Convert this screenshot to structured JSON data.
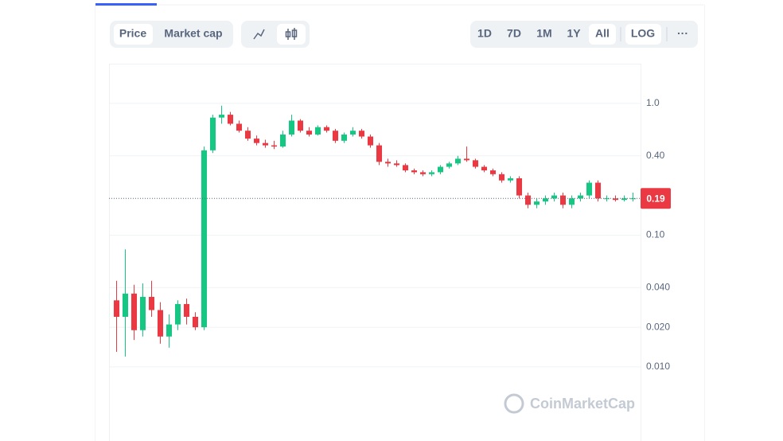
{
  "ui": {
    "tabs": [
      "Price",
      "Market cap"
    ],
    "ranges": [
      "1D",
      "7D",
      "1M",
      "1Y",
      "All"
    ],
    "log_button": "LOG",
    "more": "···",
    "watermark": "CoinMarketCap"
  },
  "chart_data": {
    "type": "candlestick",
    "log_scale": true,
    "grid": true,
    "up_color": "#16c784",
    "down_color": "#ea3943",
    "ylim": [
      0.00274,
      2.0
    ],
    "yticks": [
      {
        "value": 1,
        "label": "1.0"
      },
      {
        "value": 0.4,
        "label": "0.40"
      },
      {
        "value": 0.1,
        "label": "0.10"
      },
      {
        "value": 0.04,
        "label": "0.040"
      },
      {
        "value": 0.02,
        "label": "0.020"
      },
      {
        "value": 0.01,
        "label": "0.010"
      }
    ],
    "last_price": 0.19,
    "open": [
      0.032,
      0.024,
      0.036,
      0.019,
      0.034,
      0.027,
      0.017,
      0.021,
      0.03,
      0.024,
      0.02,
      0.44,
      0.78,
      0.82,
      0.7,
      0.62,
      0.54,
      0.5,
      0.48,
      0.47,
      0.58,
      0.74,
      0.62,
      0.58,
      0.66,
      0.62,
      0.52,
      0.58,
      0.62,
      0.56,
      0.48,
      0.36,
      0.35,
      0.34,
      0.31,
      0.3,
      0.29,
      0.3,
      0.33,
      0.35,
      0.38,
      0.37,
      0.33,
      0.31,
      0.29,
      0.26,
      0.27,
      0.2,
      0.17,
      0.18,
      0.19,
      0.2,
      0.17,
      0.19,
      0.2,
      0.25,
      0.19,
      0.19,
      0.185,
      0.19
    ],
    "high": [
      0.045,
      0.078,
      0.042,
      0.043,
      0.045,
      0.031,
      0.025,
      0.032,
      0.033,
      0.026,
      0.47,
      0.82,
      0.96,
      0.86,
      0.74,
      0.66,
      0.57,
      0.53,
      0.52,
      0.62,
      0.82,
      0.76,
      0.66,
      0.68,
      0.68,
      0.64,
      0.6,
      0.66,
      0.64,
      0.58,
      0.5,
      0.38,
      0.37,
      0.35,
      0.32,
      0.31,
      0.31,
      0.34,
      0.36,
      0.4,
      0.47,
      0.38,
      0.34,
      0.32,
      0.3,
      0.28,
      0.28,
      0.21,
      0.19,
      0.2,
      0.21,
      0.21,
      0.2,
      0.21,
      0.26,
      0.26,
      0.2,
      0.2,
      0.2,
      0.21
    ],
    "low": [
      0.013,
      0.012,
      0.016,
      0.017,
      0.024,
      0.015,
      0.014,
      0.019,
      0.021,
      0.019,
      0.019,
      0.42,
      0.7,
      0.68,
      0.6,
      0.52,
      0.48,
      0.46,
      0.45,
      0.46,
      0.56,
      0.6,
      0.56,
      0.57,
      0.6,
      0.5,
      0.5,
      0.56,
      0.54,
      0.46,
      0.34,
      0.33,
      0.33,
      0.3,
      0.29,
      0.28,
      0.28,
      0.29,
      0.32,
      0.34,
      0.36,
      0.32,
      0.3,
      0.28,
      0.25,
      0.25,
      0.19,
      0.16,
      0.16,
      0.17,
      0.18,
      0.16,
      0.16,
      0.18,
      0.19,
      0.18,
      0.18,
      0.18,
      0.18,
      0.18
    ],
    "close": [
      0.024,
      0.036,
      0.019,
      0.034,
      0.027,
      0.017,
      0.021,
      0.03,
      0.024,
      0.02,
      0.44,
      0.78,
      0.82,
      0.7,
      0.62,
      0.54,
      0.5,
      0.48,
      0.47,
      0.58,
      0.74,
      0.62,
      0.58,
      0.66,
      0.62,
      0.52,
      0.58,
      0.62,
      0.56,
      0.48,
      0.36,
      0.35,
      0.34,
      0.31,
      0.3,
      0.29,
      0.3,
      0.33,
      0.35,
      0.38,
      0.37,
      0.33,
      0.31,
      0.29,
      0.26,
      0.27,
      0.2,
      0.17,
      0.18,
      0.19,
      0.2,
      0.17,
      0.19,
      0.2,
      0.25,
      0.19,
      0.19,
      0.185,
      0.19,
      0.19
    ]
  }
}
